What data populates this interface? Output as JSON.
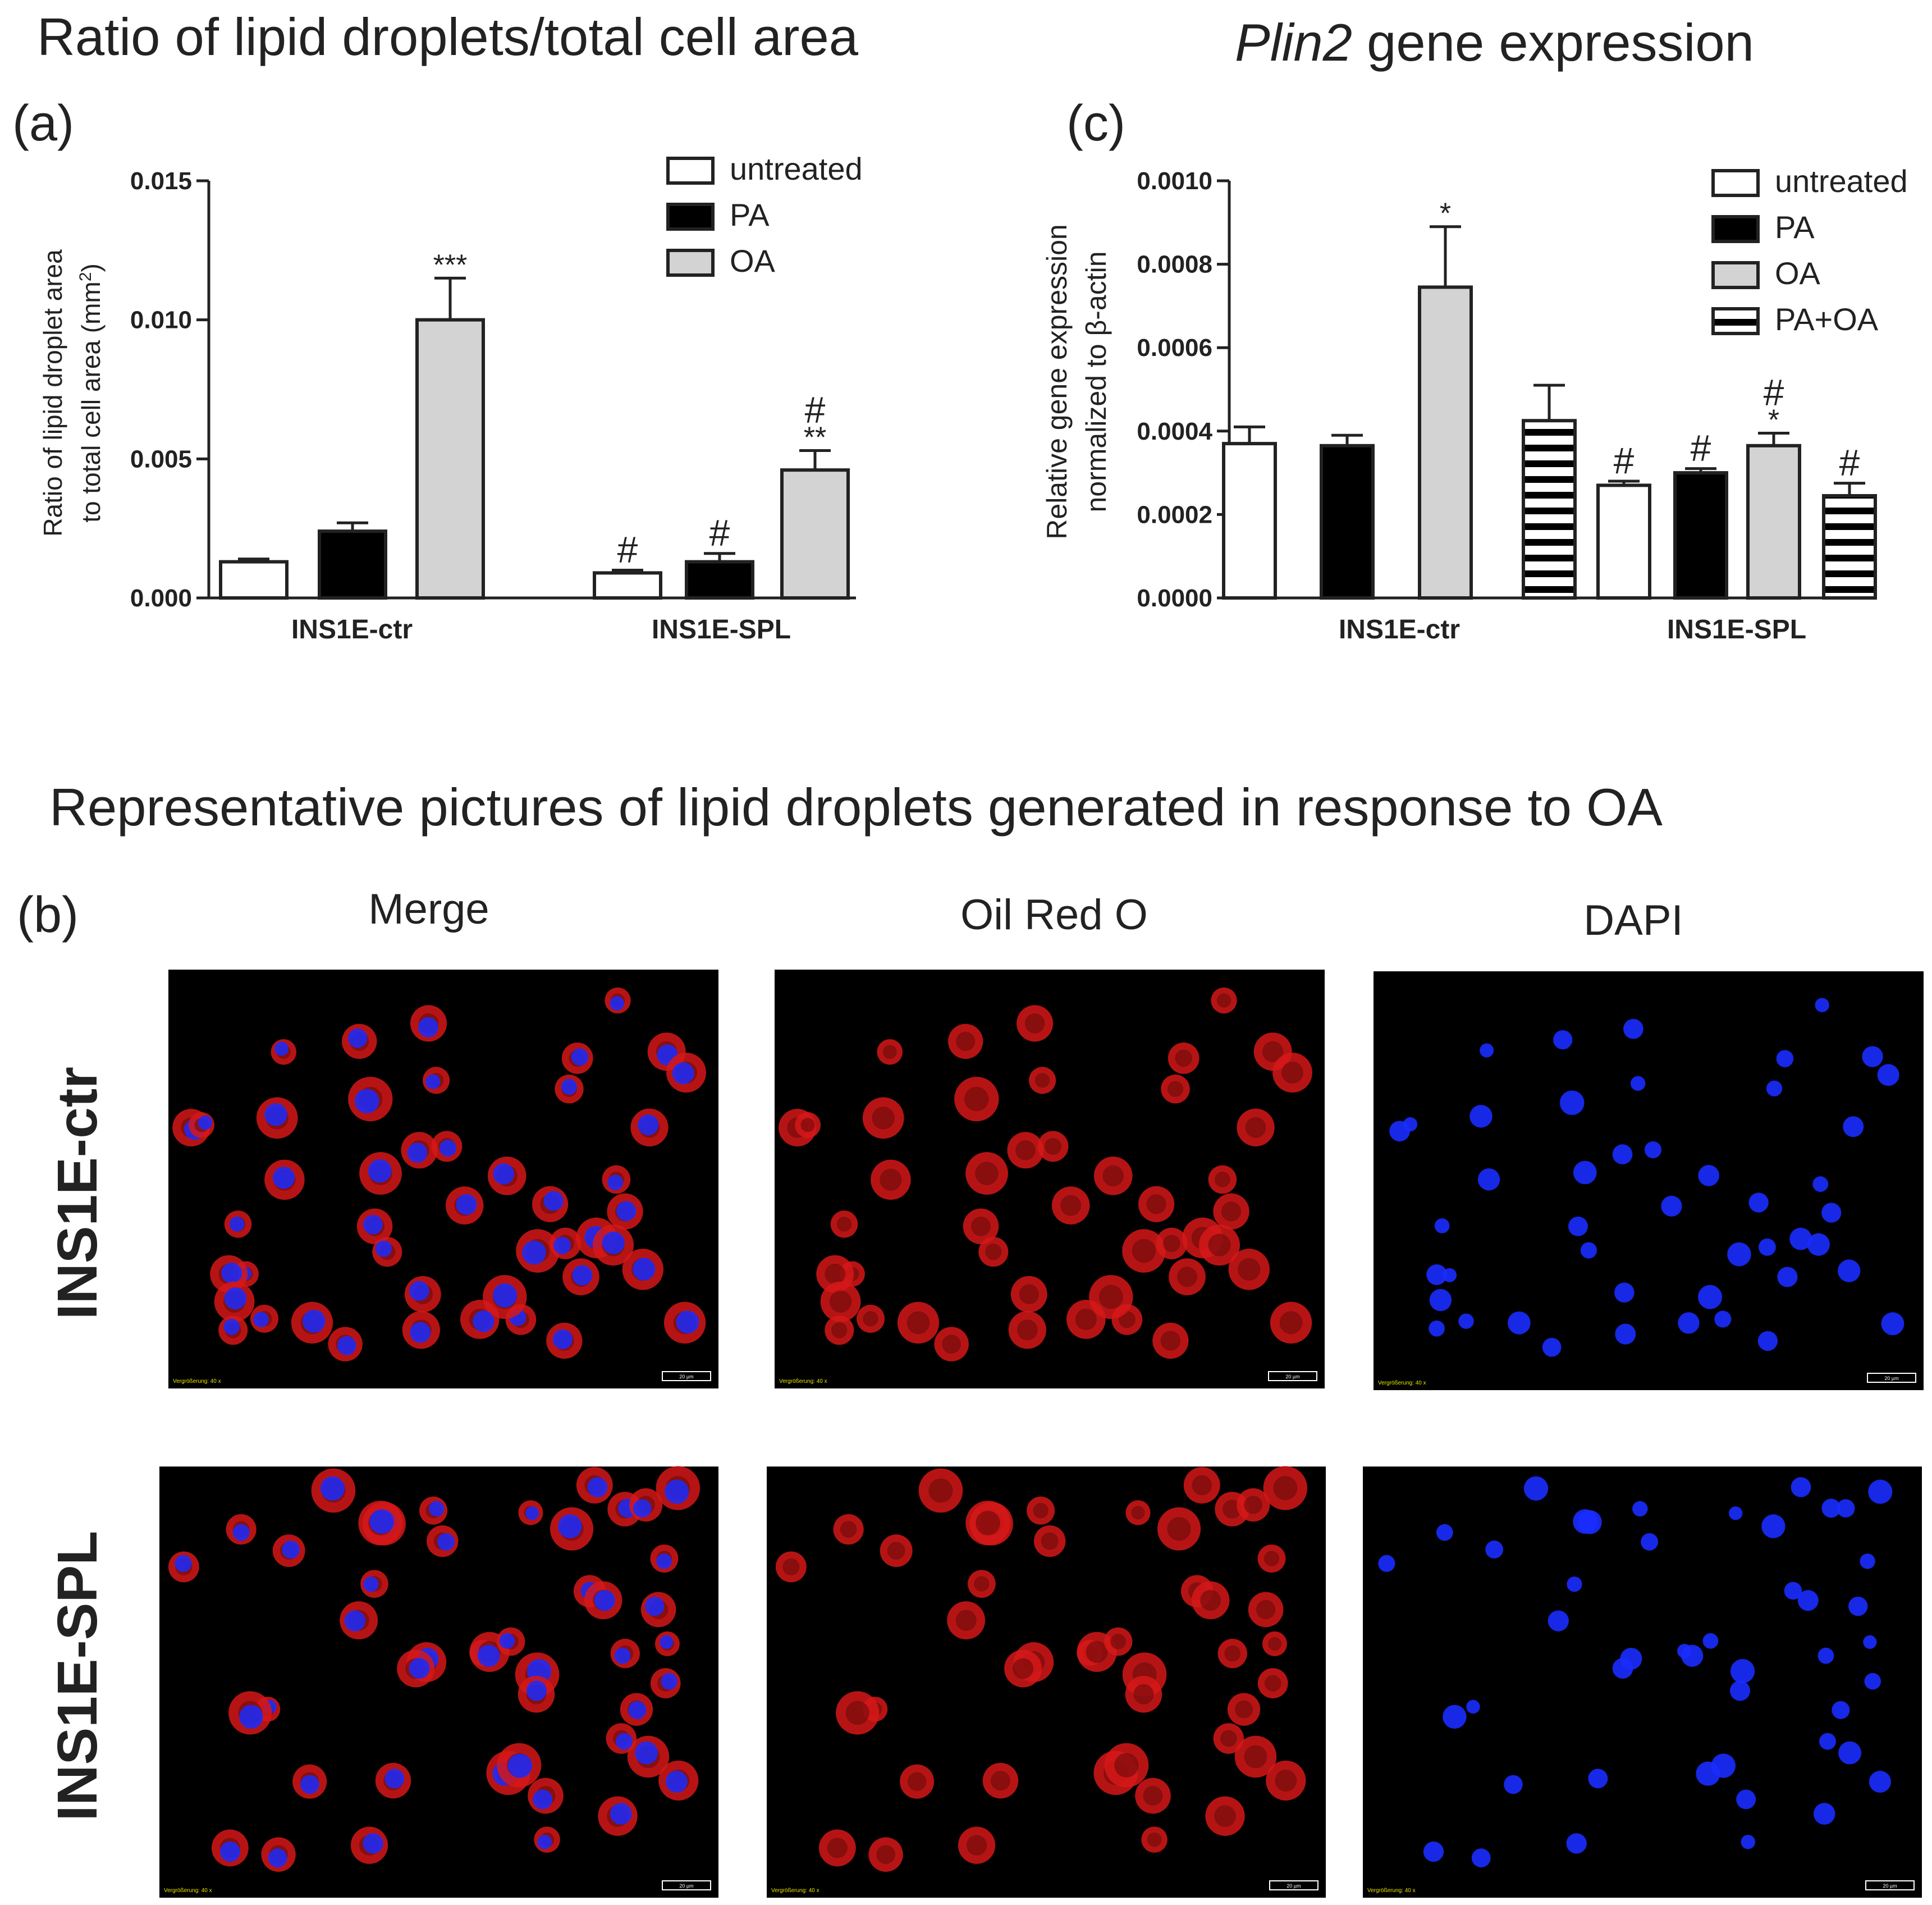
{
  "titles": {
    "a": "Ratio of lipid droplets/total cell area",
    "c_italic": "Plin2",
    "c_rest": " gene expression",
    "b": "Representative pictures of lipid droplets generated in response to OA"
  },
  "panel_labels": {
    "a": "(a)",
    "b": "(b)",
    "c": "(c)"
  },
  "micrographs": {
    "columns": [
      "Merge",
      "Oil Red O",
      "DAPI"
    ],
    "rows": [
      "INS1E-ctr",
      "INS1E-SPL"
    ],
    "magnification_label": "Vergrößerung: 40 x",
    "scale_bar_label": "20 µm"
  },
  "colors": {
    "untreated": "#ffffff",
    "PA": "#000000",
    "OA": "#d3d3d3",
    "PA+OA": "#ffffff",
    "merge_red": "#d61818",
    "dapi_blue": "#1a2cff"
  },
  "chart_data": [
    {
      "type": "bar",
      "title": "Ratio of lipid droplets/total cell area",
      "ylabel_line1": "Ratio of lipid droplet area",
      "ylabel_line2_prefix": "to total cell area (mm",
      "ylabel_sup": "2",
      "ylabel_line2_suffix": ")",
      "categories": [
        "INS1E-ctr",
        "INS1E-SPL"
      ],
      "ylim": [
        0,
        0.015
      ],
      "yticks": [
        0.0,
        0.005,
        0.01,
        0.015
      ],
      "ytick_labels": [
        "0.000",
        "0.005",
        "0.010",
        "0.015"
      ],
      "legend_position": "top-right",
      "series": [
        {
          "name": "untreated",
          "fill": "white",
          "values": [
            0.0013,
            0.0009
          ],
          "errors": [
            0.0001,
            0.0001
          ],
          "annotations": [
            [],
            [
              "#"
            ]
          ]
        },
        {
          "name": "PA",
          "fill": "black",
          "values": [
            0.0024,
            0.0013
          ],
          "errors": [
            0.0003,
            0.0003
          ],
          "annotations": [
            [],
            [
              "#"
            ]
          ]
        },
        {
          "name": "OA",
          "fill": "lightgray",
          "values": [
            0.01,
            0.0046
          ],
          "errors": [
            0.0015,
            0.0007
          ],
          "annotations": [
            [
              "***"
            ],
            [
              "**",
              "#"
            ]
          ]
        }
      ]
    },
    {
      "type": "bar",
      "title": "Plin2 gene expression",
      "ylabel_line1": "Relative gene expression",
      "ylabel_line2": "normalized to β-actin",
      "categories": [
        "INS1E-ctr",
        "INS1E-SPL"
      ],
      "ylim": [
        0,
        0.001
      ],
      "yticks": [
        0.0,
        0.0002,
        0.0004,
        0.0006,
        0.0008,
        0.001
      ],
      "ytick_labels": [
        "0.0000",
        "0.0002",
        "0.0004",
        "0.0006",
        "0.0008",
        "0.0010"
      ],
      "legend_position": "top-right",
      "series": [
        {
          "name": "untreated",
          "fill": "white",
          "values": [
            0.00037,
            0.00027
          ],
          "errors": [
            4e-05,
            1e-05
          ],
          "annotations": [
            [],
            [
              "#"
            ]
          ]
        },
        {
          "name": "PA",
          "fill": "black",
          "values": [
            0.000365,
            0.0003
          ],
          "errors": [
            2.5e-05,
            1e-05
          ],
          "annotations": [
            [],
            [
              "#"
            ]
          ]
        },
        {
          "name": "OA",
          "fill": "lightgray",
          "values": [
            0.000745,
            0.000365
          ],
          "errors": [
            0.000145,
            3e-05
          ],
          "annotations": [
            [
              "*"
            ],
            [
              "*",
              "#"
            ]
          ]
        },
        {
          "name": "PA+OA",
          "fill": "stripes",
          "values": [
            0.000425,
            0.000245
          ],
          "errors": [
            8.5e-05,
            3e-05
          ],
          "annotations": [
            [],
            [
              "#"
            ]
          ]
        }
      ]
    }
  ]
}
